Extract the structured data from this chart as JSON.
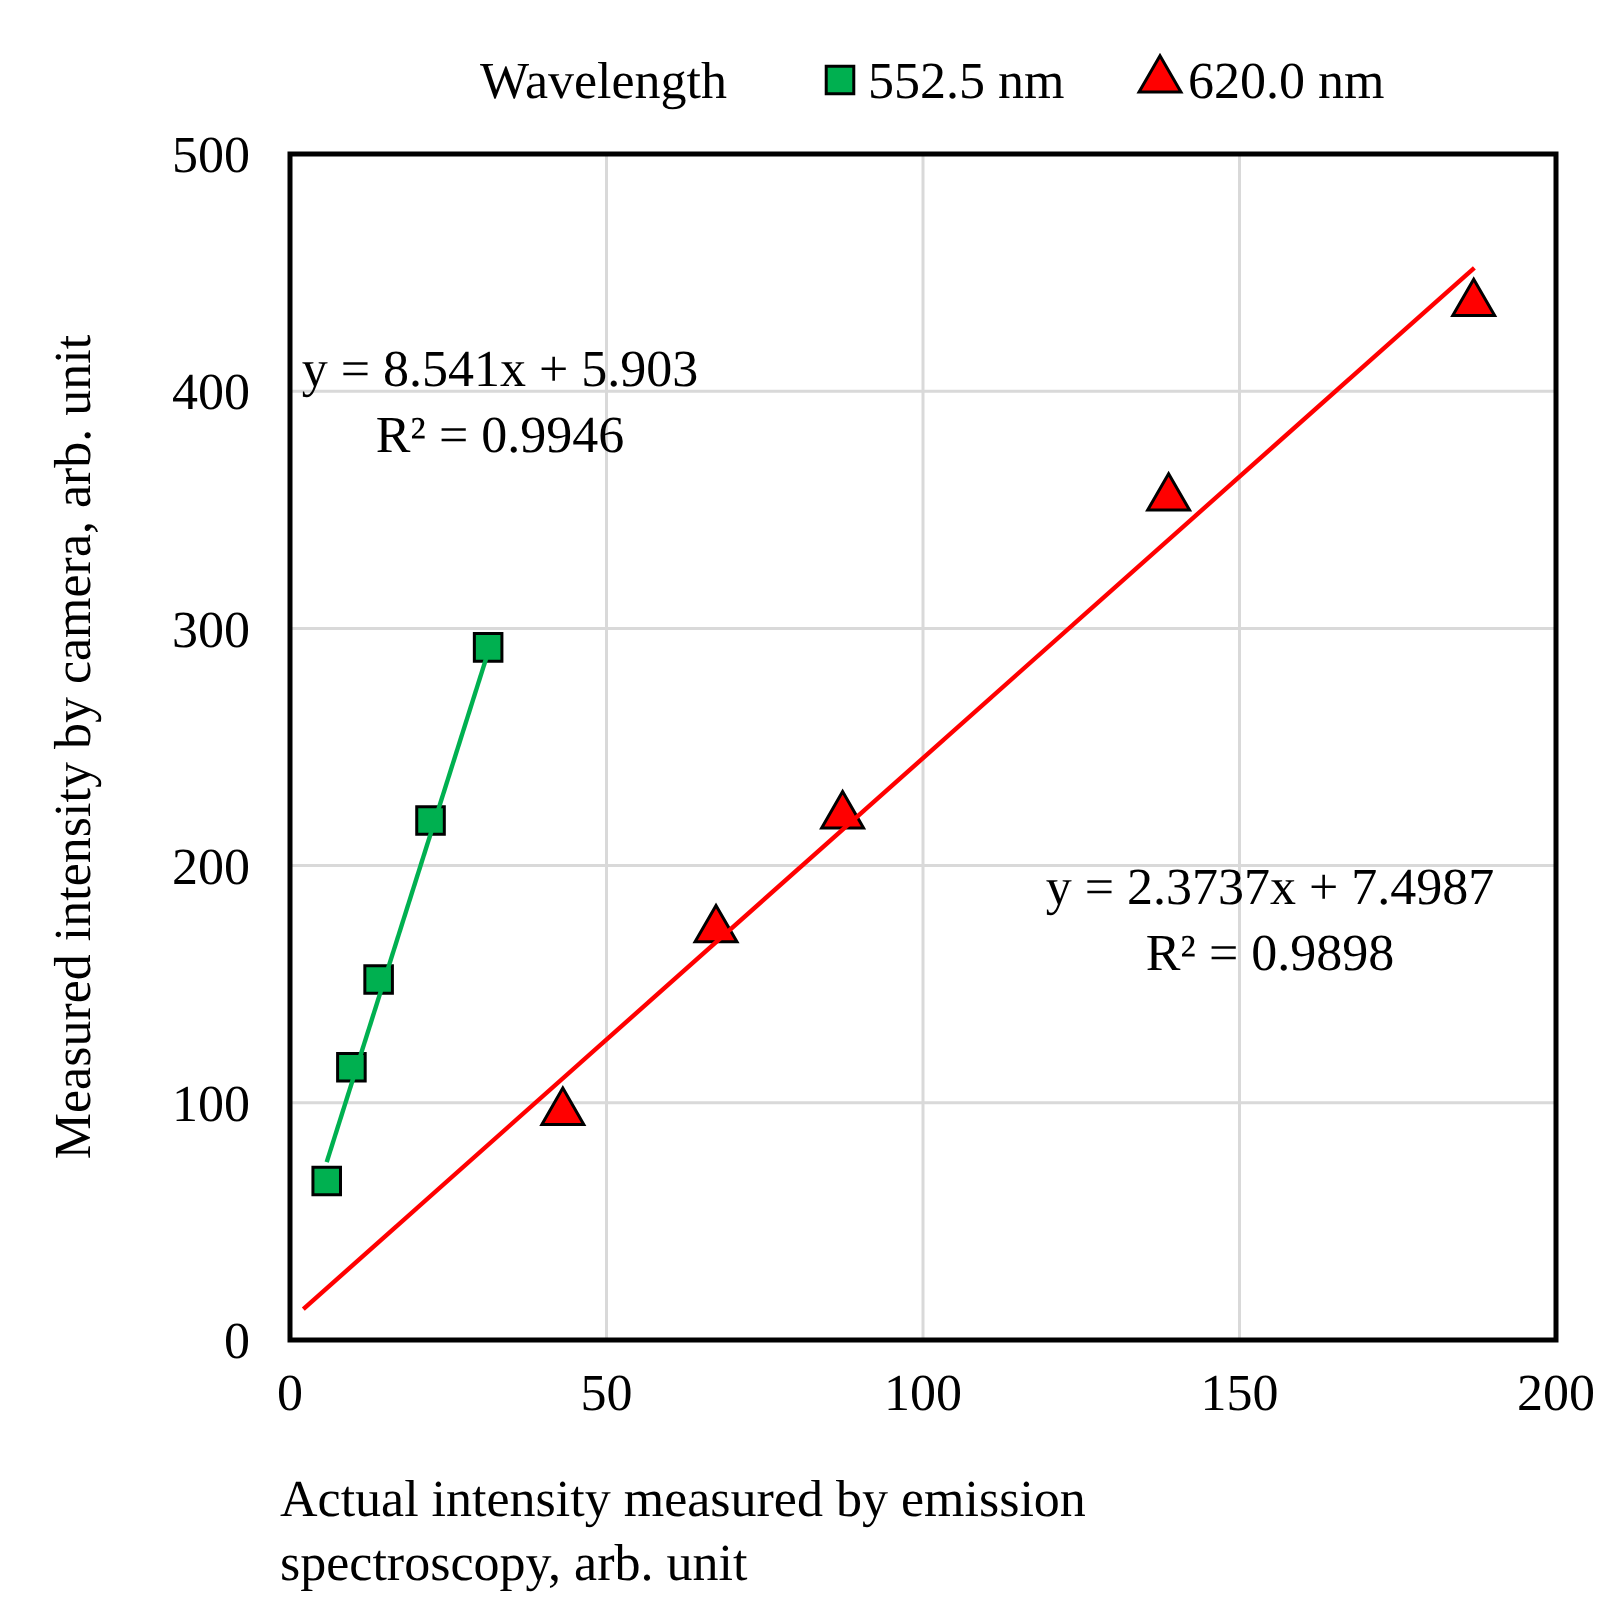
{
  "chart_data": {
    "type": "scatter",
    "xlabel": "Actual intensity measured by emission spectroscopy, arb. unit",
    "ylabel": "Measured intensity by camera, arb. unit",
    "legend_title": "Wavelength",
    "legend": "top",
    "grid": true,
    "xlim": [
      0,
      200
    ],
    "xticks": [
      0,
      50,
      100,
      150,
      200
    ],
    "ylim": [
      0,
      500
    ],
    "yticks": [
      0,
      100,
      200,
      300,
      400,
      500
    ],
    "series": [
      {
        "name": "552.5 nm",
        "marker": "square",
        "color": "#00b050",
        "x": [
          5.8,
          9.7,
          14.0,
          22.2,
          31.3
        ],
        "values": [
          67,
          115,
          152,
          219,
          292
        ]
      },
      {
        "name": "620.0 nm",
        "marker": "triangle",
        "color": "#ff0000",
        "x": [
          43.1,
          67.3,
          87.3,
          138.8,
          187
        ],
        "values": [
          96,
          173,
          221,
          355,
          437
        ]
      },
      {
        "type": "line",
        "color": "#00b050",
        "x": [
          5.8,
          31.3
        ],
        "values": [
          75,
          290
        ]
      },
      {
        "type": "line",
        "color": "#ff0000",
        "x": [
          2.1,
          187.1
        ],
        "values": [
          13,
          452
        ]
      }
    ],
    "annotations": [
      "y = 8.541x + 5.903",
      "R² = 0.9946",
      "y = 2.3737x + 7.4987",
      "R² = 0.9898"
    ]
  }
}
